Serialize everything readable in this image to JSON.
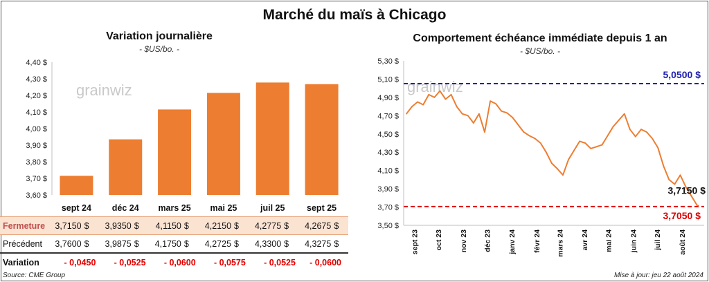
{
  "page": {
    "title": "Marché du maïs à Chicago",
    "source": "Source: CME Group",
    "updated": "Mise à jour: jeu 22 août 2024",
    "watermark": "grainwiz"
  },
  "colors": {
    "bar": "#ed7d31",
    "line": "#ed7d31",
    "upper_ref": "#2020b0",
    "lower_ref": "#e00000"
  },
  "chart_data": [
    {
      "type": "bar",
      "title": "Variation journalière",
      "subtitle": "- $US/bo. -",
      "categories": [
        "sept 24",
        "déc 24",
        "mars 25",
        "mai 25",
        "juil 25",
        "sept 25"
      ],
      "values": [
        3.715,
        3.935,
        4.115,
        4.215,
        4.2775,
        4.2675
      ],
      "ylim": [
        3.6,
        4.4
      ],
      "yticks": [
        "3,60 $",
        "3,70 $",
        "3,80 $",
        "3,90 $",
        "4,00 $",
        "4,10 $",
        "4,20 $",
        "4,30 $",
        "4,40 $"
      ],
      "grid": false
    },
    {
      "type": "line",
      "title": "Comportement échéance immédiate depuis 1 an",
      "subtitle": "- $US/bo. -",
      "xlabels": [
        "sept 23",
        "oct 23",
        "nov 23",
        "déc 23",
        "janv 24",
        "févr 24",
        "mars 24",
        "avr 24",
        "mai 24",
        "juin 24",
        "juil 24",
        "août 24"
      ],
      "x": [
        "2023-08-22",
        "2023-08-29",
        "2023-09-05",
        "2023-09-12",
        "2023-09-19",
        "2023-09-26",
        "2023-10-03",
        "2023-10-10",
        "2023-10-17",
        "2023-10-24",
        "2023-10-31",
        "2023-11-07",
        "2023-11-14",
        "2023-11-21",
        "2023-11-28",
        "2023-12-05",
        "2023-12-12",
        "2023-12-19",
        "2023-12-26",
        "2024-01-02",
        "2024-01-09",
        "2024-01-16",
        "2024-01-23",
        "2024-01-30",
        "2024-02-06",
        "2024-02-13",
        "2024-02-20",
        "2024-02-27",
        "2024-03-05",
        "2024-03-12",
        "2024-03-19",
        "2024-03-26",
        "2024-04-02",
        "2024-04-09",
        "2024-04-16",
        "2024-04-23",
        "2024-04-30",
        "2024-05-07",
        "2024-05-14",
        "2024-05-21",
        "2024-05-28",
        "2024-06-04",
        "2024-06-11",
        "2024-06-18",
        "2024-06-25",
        "2024-07-02",
        "2024-07-09",
        "2024-07-16",
        "2024-07-23",
        "2024-07-30",
        "2024-08-06",
        "2024-08-13",
        "2024-08-20",
        "2024-08-22"
      ],
      "y": [
        4.72,
        4.8,
        4.85,
        4.82,
        4.93,
        4.9,
        4.97,
        4.88,
        4.93,
        4.8,
        4.72,
        4.7,
        4.62,
        4.72,
        4.52,
        4.86,
        4.83,
        4.75,
        4.73,
        4.68,
        4.6,
        4.52,
        4.48,
        4.45,
        4.4,
        4.3,
        4.18,
        4.12,
        4.05,
        4.22,
        4.32,
        4.42,
        4.4,
        4.34,
        4.36,
        4.38,
        4.48,
        4.58,
        4.65,
        4.72,
        4.55,
        4.47,
        4.55,
        4.52,
        4.45,
        4.35,
        4.15,
        4.0,
        3.95,
        4.05,
        3.92,
        3.82,
        3.72,
        3.715
      ],
      "ylim": [
        3.5,
        5.3
      ],
      "yticks": [
        "3,50 $",
        "3,70 $",
        "3,90 $",
        "4,10 $",
        "4,30 $",
        "4,50 $",
        "4,70 $",
        "4,90 $",
        "5,10 $",
        "5,30 $"
      ],
      "reference_lines": [
        {
          "label": "5,0500 $",
          "value": 5.05,
          "color": "#2020b0"
        },
        {
          "label": "3,7050 $",
          "value": 3.705,
          "color": "#e00000"
        }
      ],
      "last_label": "3,7150 $",
      "grid": false
    }
  ],
  "table": {
    "rows": [
      {
        "label": "Fermeture",
        "cells": [
          "3,7150",
          "$",
          "3,9350",
          "$",
          "4,1150",
          "$",
          "4,2150",
          "$",
          "4,2775",
          "$",
          "4,2675",
          "$"
        ]
      },
      {
        "label": "Précédent",
        "cells": [
          "3,7600",
          "$",
          "3,9875",
          "$",
          "4,1750",
          "$",
          "4,2725",
          "$",
          "4,3300",
          "$",
          "4,3275",
          "$"
        ]
      },
      {
        "label": "Variation",
        "cells": [
          "- 0,0450",
          "- 0,0525",
          "- 0,0600",
          "- 0,0575",
          "- 0,0525",
          "- 0,0600"
        ]
      }
    ]
  }
}
